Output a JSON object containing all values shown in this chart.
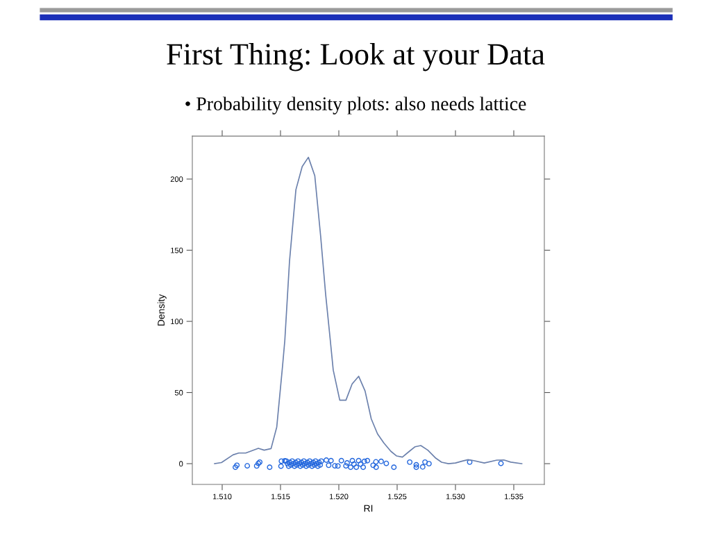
{
  "chart_data": {
    "type": "line",
    "title": "First Thing: Look at your Data",
    "subtitle": "• Probability density plots: also needs lattice",
    "xlabel": "RI",
    "ylabel": "Density",
    "xlim": [
      1.50744,
      1.53762
    ],
    "ylim": [
      -14.6,
      230.2
    ],
    "xticks": [
      {
        "value": 1.51,
        "label": "1.510"
      },
      {
        "value": 1.515,
        "label": "1.515"
      },
      {
        "value": 1.52,
        "label": "1.520"
      },
      {
        "value": 1.525,
        "label": "1.525"
      },
      {
        "value": 1.53,
        "label": "1.530"
      },
      {
        "value": 1.535,
        "label": "1.535"
      }
    ],
    "yticks": [
      0,
      50,
      100,
      150,
      200
    ],
    "grid": false,
    "legend": false,
    "series": [
      {
        "color": "#6b80ac",
        "marker": "none",
        "line_style": "solid",
        "x": [
          1.50935,
          1.50994,
          1.51093,
          1.51142,
          1.51202,
          1.5131,
          1.5136,
          1.51419,
          1.51468,
          1.51518,
          1.51537,
          1.51577,
          1.51632,
          1.51686,
          1.51739,
          1.51794,
          1.51844,
          1.51887,
          1.51927,
          1.51952,
          1.52008,
          1.52061,
          1.52114,
          1.5217,
          1.52225,
          1.52278,
          1.52332,
          1.52387,
          1.52446,
          1.52496,
          1.52545,
          1.52605,
          1.52654,
          1.52703,
          1.52763,
          1.52832,
          1.52881,
          1.5294,
          1.53,
          1.53059,
          1.53108,
          1.53158,
          1.53247,
          1.53355,
          1.53415,
          1.53474,
          1.53569
        ],
        "values": [
          0,
          0.8,
          6.2,
          7.5,
          7.5,
          10.8,
          9.5,
          10.6,
          25.8,
          69,
          86.6,
          142,
          192.5,
          208.8,
          215.3,
          202.3,
          160,
          119,
          86.6,
          65.8,
          44.6,
          44.6,
          56,
          61.4,
          51.1,
          31.5,
          20.9,
          14.4,
          8.7,
          5.4,
          4.6,
          8.7,
          11.9,
          12.7,
          9.5,
          3.8,
          1,
          0,
          0.5,
          1.8,
          2.8,
          2.1,
          0.5,
          2.5,
          2.6,
          1.1,
          0
        ]
      },
      {
        "type": "scatter",
        "color": "#2266dd",
        "marker": "circle",
        "x": [
          1.51113,
          1.51126,
          1.51215,
          1.51296,
          1.5131,
          1.51322,
          1.51407,
          1.51504,
          1.51508,
          1.51537,
          1.5155,
          1.5156,
          1.5157,
          1.5158,
          1.5159,
          1.516,
          1.5161,
          1.5162,
          1.5163,
          1.5164,
          1.5165,
          1.5166,
          1.5167,
          1.5168,
          1.5169,
          1.517,
          1.5171,
          1.5172,
          1.5173,
          1.5174,
          1.5175,
          1.5176,
          1.5177,
          1.5178,
          1.5179,
          1.518,
          1.5181,
          1.5182,
          1.5183,
          1.5184,
          1.5185,
          1.51893,
          1.51913,
          1.51933,
          1.51966,
          1.51992,
          1.52022,
          1.52061,
          1.52071,
          1.52101,
          1.52116,
          1.5213,
          1.5215,
          1.5217,
          1.52186,
          1.52209,
          1.52219,
          1.52245,
          1.52294,
          1.52318,
          1.5232,
          1.52363,
          1.52407,
          1.52472,
          1.52608,
          1.52664,
          1.52664,
          1.52719,
          1.52739,
          1.52773,
          1.53122,
          1.5339
        ],
        "values": [
          -2.5,
          -1.1,
          -1.5,
          -1.6,
          0.2,
          1.1,
          -2.5,
          -1.8,
          1.8,
          2,
          1.8,
          0,
          -1.8,
          0.9,
          -0.9,
          1.8,
          0,
          -1.8,
          0.9,
          -0.9,
          1.8,
          0,
          -1.8,
          0.9,
          -0.9,
          1.8,
          0,
          -1.8,
          0.9,
          -0.9,
          1.8,
          0,
          -1.8,
          0.9,
          -0.9,
          1.8,
          0,
          -1.8,
          0.9,
          -0.9,
          1.8,
          2.5,
          -1.1,
          2.1,
          -1.5,
          -1.6,
          2.1,
          -1.5,
          0.5,
          -2.5,
          2.1,
          -0.3,
          -2.5,
          2.1,
          -0.3,
          -2.5,
          1.6,
          2.1,
          -1.1,
          1.3,
          -2.5,
          1.6,
          0.2,
          -2.5,
          1.1,
          -0.8,
          -2.5,
          -2.3,
          1.1,
          0,
          1.1,
          0.2
        ]
      }
    ]
  }
}
